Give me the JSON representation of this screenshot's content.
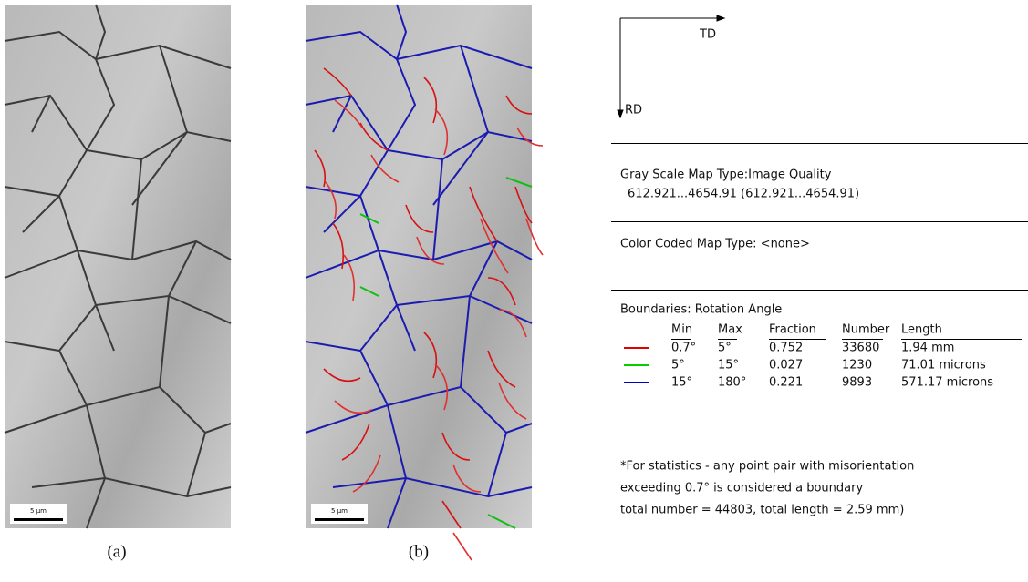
{
  "figure": {
    "panels": [
      {
        "caption": "(a)",
        "scale_bar": "5 µm"
      },
      {
        "caption": "(b)",
        "scale_bar": "5 µm"
      }
    ],
    "axes": {
      "horizontal": "TD",
      "vertical": "RD"
    },
    "gray_scale": {
      "title": "Gray Scale Map Type:Image Quality",
      "range": "612.921...4654.91 (612.921...4654.91)"
    },
    "color_coded": "Color Coded Map Type: <none>",
    "boundaries": {
      "title": "Boundaries: Rotation Angle",
      "headers": [
        "Min",
        "Max",
        "Fraction",
        "Number",
        "Length"
      ],
      "rows": [
        {
          "color": "#e00000",
          "cells": [
            "0.7°",
            "5°",
            "0.752",
            "33680",
            "1.94 mm"
          ]
        },
        {
          "color": "#00d000",
          "cells": [
            "5°",
            "15°",
            "0.027",
            "1230",
            "71.01 microns"
          ]
        },
        {
          "color": "#0000c8",
          "cells": [
            "15°",
            "180°",
            "0.221",
            "9893",
            "571.17 microns"
          ]
        }
      ]
    },
    "footnote": [
      "*For statistics - any point pair with misorientation",
      "exceeding 0.7° is considered a boundary",
      "total number = 44803, total length = 2.59 mm)"
    ]
  }
}
